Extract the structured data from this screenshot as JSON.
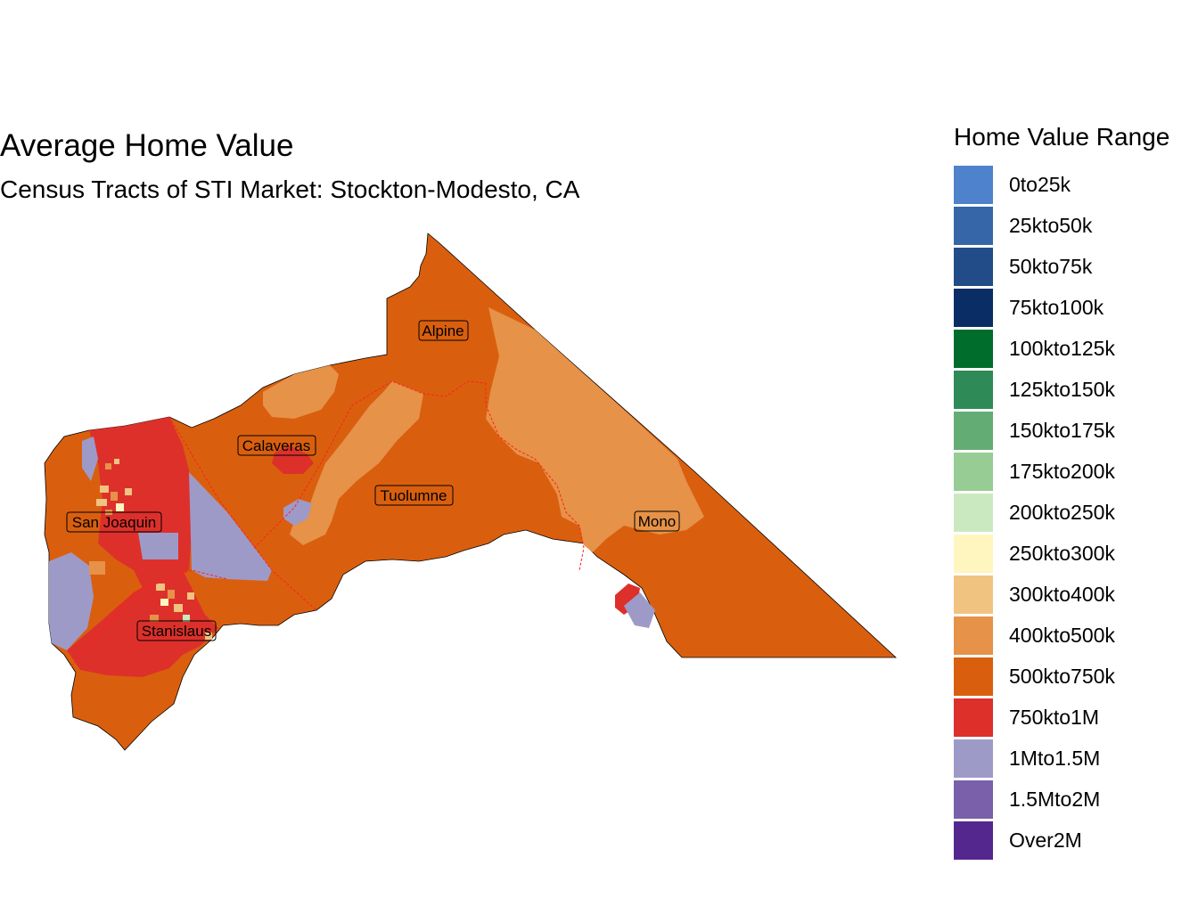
{
  "title": "Average Home Value",
  "subtitle": "Census Tracts of STI Market: Stockton-Modesto, CA",
  "legend": {
    "title": "Home Value Range",
    "items": [
      {
        "label": "0to25k",
        "color": "#4f82cc"
      },
      {
        "label": "25kto50k",
        "color": "#3766a8"
      },
      {
        "label": "50kto75k",
        "color": "#214c87"
      },
      {
        "label": "75kto100k",
        "color": "#0b2d66"
      },
      {
        "label": "100kto125k",
        "color": "#006d2c"
      },
      {
        "label": "125kto150k",
        "color": "#2e8b57"
      },
      {
        "label": "150kto175k",
        "color": "#63ad74"
      },
      {
        "label": "175kto200k",
        "color": "#98cc95"
      },
      {
        "label": "200kto250k",
        "color": "#cbe9c1"
      },
      {
        "label": "250kto300k",
        "color": "#fff5bf"
      },
      {
        "label": "300kto400k",
        "color": "#f1c381"
      },
      {
        "label": "400kto500k",
        "color": "#e69248"
      },
      {
        "label": "500kto750k",
        "color": "#d95f0e"
      },
      {
        "label": "750kto1M",
        "color": "#dd302b"
      },
      {
        "label": "1Mto1.5M",
        "color": "#9e9ac8"
      },
      {
        "label": "1.5Mto2M",
        "color": "#7a5fab"
      },
      {
        "label": "Over2M",
        "color": "#54278f"
      }
    ]
  },
  "counties": [
    {
      "name": "Alpine"
    },
    {
      "name": "Calaveras"
    },
    {
      "name": "San Joaquin"
    },
    {
      "name": "Tuolumne"
    },
    {
      "name": "Mono"
    },
    {
      "name": "Stanislaus"
    }
  ]
}
